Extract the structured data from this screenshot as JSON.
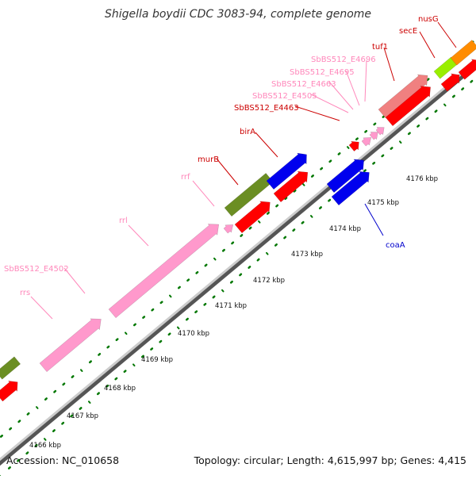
{
  "title": "Shigella boydii CDC 3083-94, complete genome",
  "footer": {
    "accession": "Accession: NC_010658",
    "summary": "Topology: circular; Length: 4,615,997 bp; Genes: 4,415"
  },
  "scale_ticks": [
    {
      "label": "4166 kbp"
    },
    {
      "label": "4167 kbp"
    },
    {
      "label": "4168 kbp"
    },
    {
      "label": "4169 kbp"
    },
    {
      "label": "4170 kbp"
    },
    {
      "label": "4171 kbp"
    },
    {
      "label": "4172 kbp"
    },
    {
      "label": "4173 kbp"
    },
    {
      "label": "4174 kbp"
    },
    {
      "label": "4175 kbp"
    },
    {
      "label": "4176 kbp"
    }
  ],
  "gene_labels": [
    {
      "name": "nusG",
      "color": "#cc0000"
    },
    {
      "name": "secE",
      "color": "#cc0000"
    },
    {
      "name": "tuf1",
      "color": "#cc0000"
    },
    {
      "name": "SbBS512_E4696",
      "color": "#ff88bb"
    },
    {
      "name": "SbBS512_E4695",
      "color": "#ff88bb"
    },
    {
      "name": "SbBS512_E4663",
      "color": "#ff88bb"
    },
    {
      "name": "SbBS512_E4505",
      "color": "#ff88bb"
    },
    {
      "name": "SbBS512_E4463",
      "color": "#cc0000"
    },
    {
      "name": "birA",
      "color": "#cc0000"
    },
    {
      "name": "murB",
      "color": "#cc0000"
    },
    {
      "name": "rrf",
      "color": "#ff88bb"
    },
    {
      "name": "rrl",
      "color": "#ff88bb"
    },
    {
      "name": "SbBS512_E4502",
      "color": "#ff88bb"
    },
    {
      "name": "rrs",
      "color": "#ff88bb"
    },
    {
      "name": "coaA",
      "color": "#0000cc"
    }
  ],
  "colors": {
    "cds_red": "#ff0000",
    "rna_pink": "#ff99cc",
    "gene_green": "#6b8e23",
    "gene_blue": "#0000ee",
    "gene_orange": "#ff8c00",
    "gene_lightgreen": "#99ee00",
    "gene_salmon": "#f08080",
    "backbone": "#999999",
    "tick_green": "#007700"
  }
}
